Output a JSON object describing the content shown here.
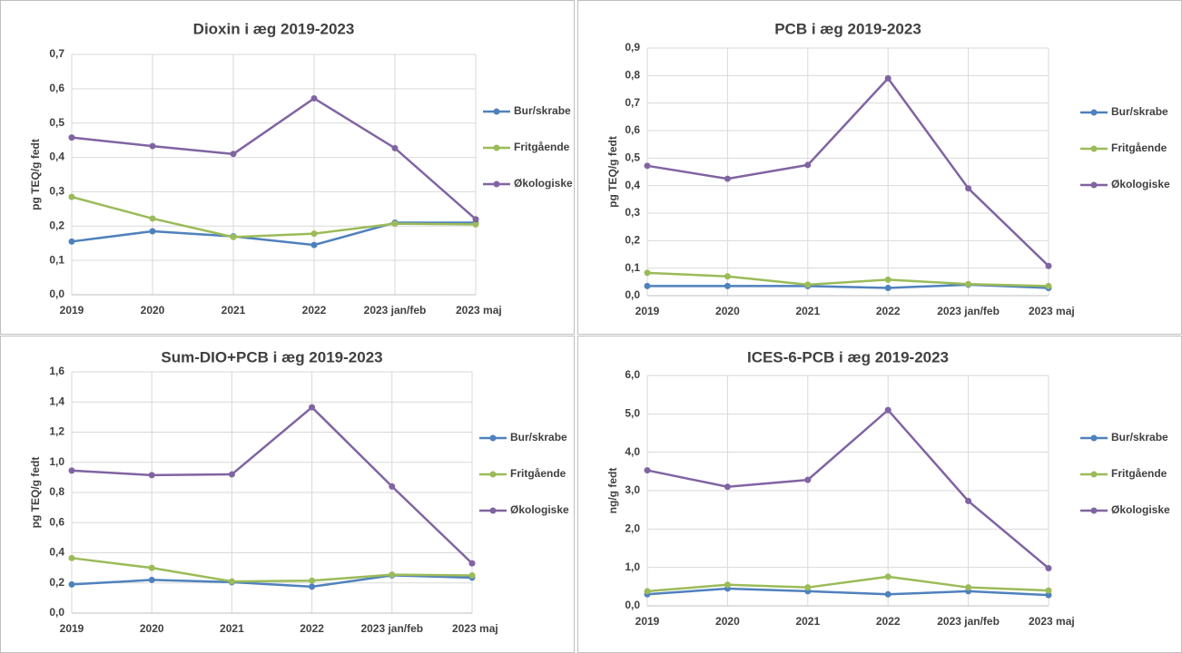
{
  "chart_data": [
    {
      "type": "line",
      "title": "Dioxin i æg 2019-2023",
      "y_label": "pg TEQ/g fedt",
      "categories": [
        "2019",
        "2020",
        "2021",
        "2022",
        "2023 jan/feb",
        "2023 maj"
      ],
      "series": [
        {
          "name": "Bur/skrabe",
          "color": "#4f81bd",
          "values": [
            0.155,
            0.185,
            0.17,
            0.145,
            0.21,
            0.21
          ]
        },
        {
          "name": "Fritgående",
          "color": "#9bbb59",
          "values": [
            0.285,
            0.222,
            0.168,
            0.178,
            0.207,
            0.205
          ]
        },
        {
          "name": "Økologiske",
          "color": "#8064a2",
          "values": [
            0.458,
            0.433,
            0.41,
            0.572,
            0.427,
            0.22
          ]
        }
      ],
      "ylim": [
        0,
        0.7
      ],
      "yticks": [
        {
          "value": 0,
          "label": "0,0"
        },
        {
          "value": 0.1,
          "label": "0,1"
        },
        {
          "value": 0.2,
          "label": "0,2"
        },
        {
          "value": 0.3,
          "label": "0,3"
        },
        {
          "value": 0.4,
          "label": "0,4"
        },
        {
          "value": 0.5,
          "label": "0,5"
        },
        {
          "value": 0.6,
          "label": "0,6"
        },
        {
          "value": 0.7,
          "label": "0,7"
        }
      ],
      "grid": true,
      "legend": "right"
    },
    {
      "type": "line",
      "title": "PCB i æg 2019-2023",
      "y_label": "pg TEQ/g fedt",
      "categories": [
        "2019",
        "2020",
        "2021",
        "2022",
        "2023 jan/feb",
        "2023 maj"
      ],
      "series": [
        {
          "name": "Bur/skrabe",
          "color": "#4f81bd",
          "values": [
            0.035,
            0.035,
            0.035,
            0.028,
            0.04,
            0.028
          ]
        },
        {
          "name": "Fritgående",
          "color": "#9bbb59",
          "values": [
            0.083,
            0.07,
            0.04,
            0.058,
            0.042,
            0.035
          ]
        },
        {
          "name": "Økologiske",
          "color": "#8064a2",
          "values": [
            0.472,
            0.425,
            0.475,
            0.79,
            0.39,
            0.108
          ]
        }
      ],
      "ylim": [
        0,
        0.9
      ],
      "yticks": [
        {
          "value": 0,
          "label": "0,0"
        },
        {
          "value": 0.1,
          "label": "0,1"
        },
        {
          "value": 0.2,
          "label": "0,2"
        },
        {
          "value": 0.3,
          "label": "0,3"
        },
        {
          "value": 0.4,
          "label": "0,4"
        },
        {
          "value": 0.5,
          "label": "0,5"
        },
        {
          "value": 0.6,
          "label": "0,6"
        },
        {
          "value": 0.7,
          "label": "0,7"
        },
        {
          "value": 0.8,
          "label": "0,8"
        },
        {
          "value": 0.9,
          "label": "0,9"
        }
      ],
      "grid": true,
      "legend": "right"
    },
    {
      "type": "line",
      "title": "Sum-DIO+PCB i æg 2019-2023",
      "y_label": "pg TEQ/g fedt",
      "categories": [
        "2019",
        "2020",
        "2021",
        "2022",
        "2023 jan/feb",
        "2023 maj"
      ],
      "series": [
        {
          "name": "Bur/skrabe",
          "color": "#4f81bd",
          "values": [
            0.19,
            0.22,
            0.205,
            0.175,
            0.25,
            0.235
          ]
        },
        {
          "name": "Fritgående",
          "color": "#9bbb59",
          "values": [
            0.365,
            0.3,
            0.21,
            0.215,
            0.255,
            0.25
          ]
        },
        {
          "name": "Økologiske",
          "color": "#8064a2",
          "values": [
            0.945,
            0.915,
            0.92,
            1.365,
            0.84,
            0.33
          ]
        }
      ],
      "ylim": [
        0,
        1.6
      ],
      "yticks": [
        {
          "value": 0,
          "label": "0,0"
        },
        {
          "value": 0.2,
          "label": "0,2"
        },
        {
          "value": 0.4,
          "label": "0,4"
        },
        {
          "value": 0.6,
          "label": "0,6"
        },
        {
          "value": 0.8,
          "label": "0,8"
        },
        {
          "value": 1.0,
          "label": "1,0"
        },
        {
          "value": 1.2,
          "label": "1,2"
        },
        {
          "value": 1.4,
          "label": "1,4"
        },
        {
          "value": 1.6,
          "label": "1,6"
        }
      ],
      "grid": true,
      "legend": "right"
    },
    {
      "type": "line",
      "title": "ICES-6-PCB i æg 2019-2023",
      "y_label": "ng/g fedt",
      "categories": [
        "2019",
        "2020",
        "2021",
        "2022",
        "2023 jan/feb",
        "2023 maj"
      ],
      "series": [
        {
          "name": "Bur/skrabe",
          "color": "#4f81bd",
          "values": [
            0.3,
            0.45,
            0.38,
            0.3,
            0.38,
            0.28
          ]
        },
        {
          "name": "Fritgående",
          "color": "#9bbb59",
          "values": [
            0.38,
            0.55,
            0.48,
            0.76,
            0.48,
            0.4
          ]
        },
        {
          "name": "Økologiske",
          "color": "#8064a2",
          "values": [
            3.53,
            3.1,
            3.28,
            5.1,
            2.73,
            0.98
          ]
        }
      ],
      "ylim": [
        0,
        6
      ],
      "yticks": [
        {
          "value": 0,
          "label": "0,0"
        },
        {
          "value": 1,
          "label": "1,0"
        },
        {
          "value": 2,
          "label": "2,0"
        },
        {
          "value": 3,
          "label": "3,0"
        },
        {
          "value": 4,
          "label": "4,0"
        },
        {
          "value": 5,
          "label": "5,0"
        },
        {
          "value": 6,
          "label": "6,0"
        }
      ],
      "grid": true,
      "legend": "right"
    }
  ]
}
